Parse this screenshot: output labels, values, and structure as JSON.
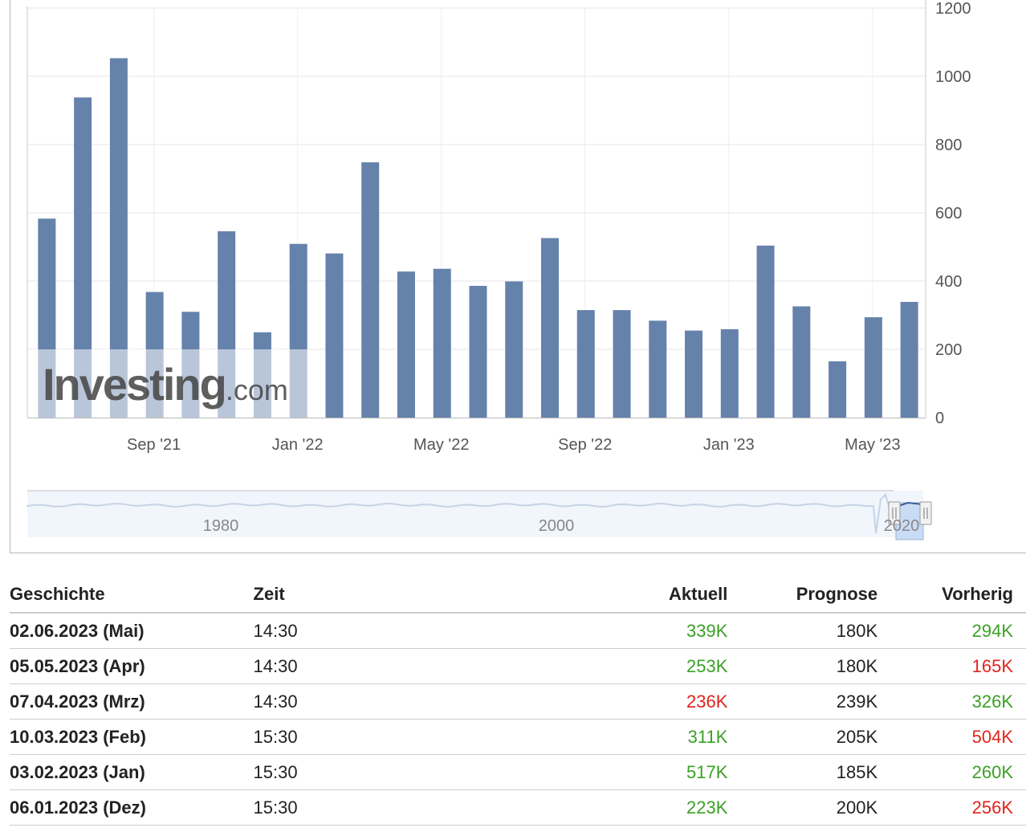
{
  "chart_data": {
    "type": "bar",
    "series_color": "#6582ab",
    "values": [
      583,
      938,
      1053,
      368,
      310,
      546,
      250,
      509,
      481,
      748,
      428,
      436,
      386,
      399,
      526,
      315,
      315,
      284,
      255,
      259,
      504,
      326,
      165,
      294,
      339
    ],
    "yticks": [
      0,
      200,
      400,
      600,
      800,
      1000,
      1200
    ],
    "ylim": [
      0,
      1200
    ],
    "xtick_labels": [
      "Sep '21",
      "Jan '22",
      "May '22",
      "Sep '22",
      "Jan '23",
      "May '23"
    ],
    "xtick_bar_index": [
      3,
      7,
      11,
      15,
      19,
      23
    ],
    "grid": true,
    "watermark": {
      "main": "Investing",
      "suffix": ".com"
    },
    "navigator": {
      "labels": [
        "1980",
        "2000",
        "2020"
      ]
    }
  },
  "table": {
    "headers": {
      "history": "Geschichte",
      "time": "Zeit",
      "actual": "Aktuell",
      "forecast": "Prognose",
      "previous": "Vorherig"
    },
    "rows": [
      {
        "date": "02.06.2023 (Mai)",
        "time": "14:30",
        "actual": "339K",
        "actual_state": "up",
        "forecast": "180K",
        "previous": "294K",
        "previous_state": "up"
      },
      {
        "date": "05.05.2023 (Apr)",
        "time": "14:30",
        "actual": "253K",
        "actual_state": "up",
        "forecast": "180K",
        "previous": "165K",
        "previous_state": "down"
      },
      {
        "date": "07.04.2023 (Mrz)",
        "time": "14:30",
        "actual": "236K",
        "actual_state": "down",
        "forecast": "239K",
        "previous": "326K",
        "previous_state": "up"
      },
      {
        "date": "10.03.2023 (Feb)",
        "time": "15:30",
        "actual": "311K",
        "actual_state": "up",
        "forecast": "205K",
        "previous": "504K",
        "previous_state": "down"
      },
      {
        "date": "03.02.2023 (Jan)",
        "time": "15:30",
        "actual": "517K",
        "actual_state": "up",
        "forecast": "185K",
        "previous": "260K",
        "previous_state": "up"
      },
      {
        "date": "06.01.2023 (Dez)",
        "time": "15:30",
        "actual": "223K",
        "actual_state": "up",
        "forecast": "200K",
        "previous": "256K",
        "previous_state": "down"
      }
    ],
    "colors": {
      "up": "#3aa125",
      "down": "#e0241c"
    }
  }
}
